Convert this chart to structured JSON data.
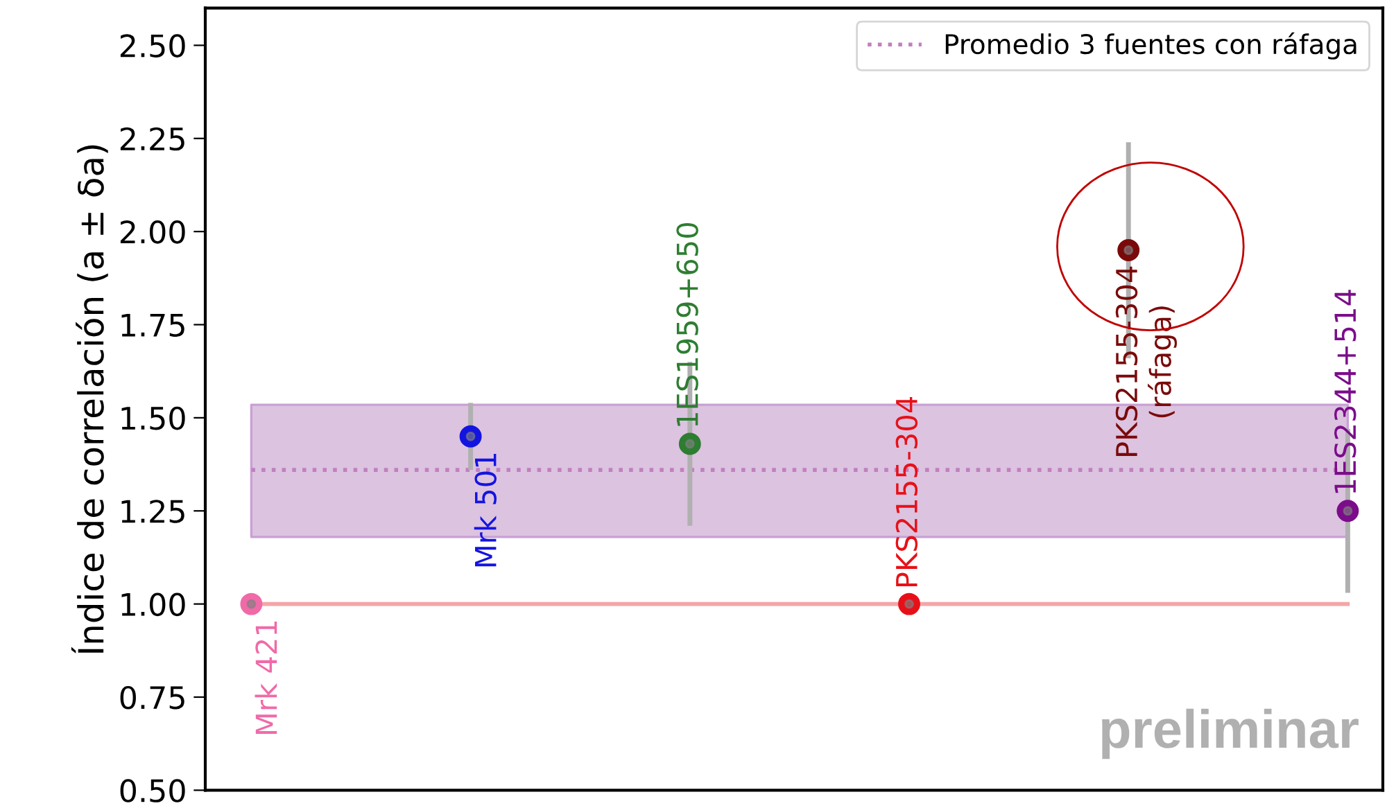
{
  "chart_data": {
    "type": "scatter",
    "categories": [
      null,
      null,
      null,
      null,
      null,
      null
    ],
    "series": [
      {
        "name": "Mrk 421",
        "color": "#f06aa8",
        "values": [
          1.0,
          null,
          null,
          null,
          null,
          null
        ],
        "errors": [
          null,
          null,
          null,
          null,
          null,
          null
        ]
      },
      {
        "name": "Mrk 501",
        "color": "#1414e0",
        "values": [
          null,
          1.45,
          null,
          null,
          null,
          null
        ],
        "errors": [
          null,
          0.09,
          null,
          null,
          null,
          null
        ]
      },
      {
        "name": "1ES1959+650",
        "color": "#2e7d32",
        "values": [
          null,
          null,
          1.43,
          null,
          null,
          null
        ],
        "errors": [
          null,
          null,
          0.22,
          null,
          null,
          null
        ]
      },
      {
        "name": "PKS2155-304",
        "color": "#e81018",
        "values": [
          null,
          null,
          null,
          1.0,
          null,
          null
        ],
        "errors": [
          null,
          null,
          null,
          null,
          null,
          null
        ]
      },
      {
        "name": "PKS2155-304\n(ráfaga)",
        "color": "#7a0a0a",
        "values": [
          null,
          null,
          null,
          null,
          1.95,
          null
        ],
        "errors": [
          null,
          null,
          null,
          null,
          0.29,
          null
        ]
      },
      {
        "name": "1ES2344+514",
        "color": "#7b0d8a",
        "values": [
          null,
          null,
          null,
          null,
          null,
          1.25
        ],
        "errors": [
          null,
          null,
          null,
          null,
          null,
          0.22
        ]
      }
    ],
    "ylabel": "Índice de correlación (a ± δa)",
    "ylim": [
      0.5,
      2.6
    ],
    "yticks": [
      {
        "value": 0.5,
        "label": "0.50"
      },
      {
        "value": 0.75,
        "label": "0.75"
      },
      {
        "value": 1.0,
        "label": "1.00"
      },
      {
        "value": 1.25,
        "label": "1.25"
      },
      {
        "value": 1.5,
        "label": "1.50"
      },
      {
        "value": 1.75,
        "label": "1.75"
      },
      {
        "value": 2.0,
        "label": "2.00"
      },
      {
        "value": 2.25,
        "label": "2.25"
      },
      {
        "value": 2.5,
        "label": "2.50"
      }
    ],
    "ref_lines": [
      {
        "axis": "y",
        "value": 1.0,
        "color": "#f4a6a6",
        "line_style": "solid"
      },
      {
        "axis": "y",
        "value": 1.36,
        "label": "Promedio 3 fuentes con ráfaga",
        "color": "#c080c0",
        "line_style": "dotted"
      }
    ],
    "bands": [
      {
        "axis": "y",
        "from": 1.18,
        "to": 1.535,
        "color": "#dcc3e0"
      }
    ],
    "annotations": [
      "preliminar"
    ],
    "legend": "top right",
    "marker": "circle",
    "tick_labels": "y",
    "grid": false
  }
}
